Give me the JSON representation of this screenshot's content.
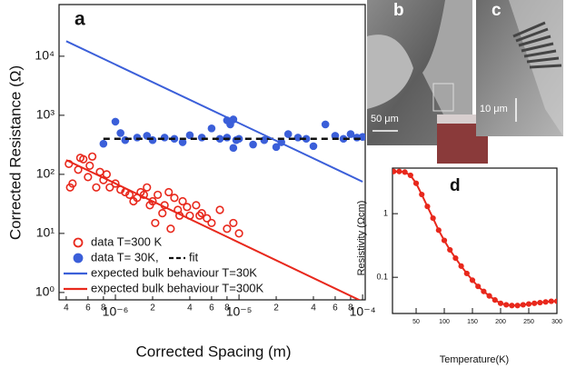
{
  "chart_data": [
    {
      "type": "scatter",
      "label": "a",
      "xlabel": "Corrected Spacing (m)",
      "ylabel": "Corrected Resistance (Ω)",
      "xscale": "log",
      "yscale": "log",
      "xlim": [
        3.5e-07,
        0.000105
      ],
      "ylim": [
        0.75,
        75000
      ],
      "xticks": [
        {
          "value": 4e-07,
          "label": "4"
        },
        {
          "value": 6e-07,
          "label": "6"
        },
        {
          "value": 8e-07,
          "label": "8"
        },
        {
          "value": 1e-06,
          "label": "10⁻⁶"
        },
        {
          "value": 2e-06,
          "label": "2"
        },
        {
          "value": 4e-06,
          "label": "4"
        },
        {
          "value": 6e-06,
          "label": "6"
        },
        {
          "value": 8e-06,
          "label": "8"
        },
        {
          "value": 1e-05,
          "label": "10⁻⁵"
        },
        {
          "value": 2e-05,
          "label": "2"
        },
        {
          "value": 4e-05,
          "label": "4"
        },
        {
          "value": 6e-05,
          "label": "6"
        },
        {
          "value": 8e-05,
          "label": "8"
        },
        {
          "value": 0.0001,
          "label": "10⁻⁴"
        }
      ],
      "yticks": [
        {
          "value": 1,
          "label": "10⁰"
        },
        {
          "value": 10,
          "label": "10¹"
        },
        {
          "value": 100,
          "label": "10²"
        },
        {
          "value": 1000,
          "label": "10³"
        },
        {
          "value": 10000,
          "label": "10⁴"
        }
      ],
      "series": [
        {
          "name": "data T=300 K",
          "color": "#e8281c",
          "style": "open-circle",
          "x": [
            4.2e-07,
            4.5e-07,
            5e-07,
            5.5e-07,
            6e-07,
            6.5e-07,
            7e-07,
            7.5e-07,
            8e-07,
            9e-07,
            1e-06,
            1.1e-06,
            1.2e-06,
            1.3e-06,
            1.5e-06,
            1.6e-06,
            1.8e-06,
            2e-06,
            2.2e-06,
            2.5e-06,
            2.7e-06,
            3e-06,
            3.2e-06,
            3.5e-06,
            4e-06,
            4.5e-06,
            5e-06,
            5.5e-06,
            6e-06,
            7e-06,
            8e-06,
            9e-06,
            1e-05,
            4.3e-07,
            5.2e-07,
            6.2e-07,
            8.5e-07,
            1.4e-06,
            1.7e-06,
            2.1e-06,
            2.8e-06,
            3.3e-06,
            3.8e-06,
            4.8e-06,
            1.9e-06,
            2.4e-06
          ],
          "values": [
            150,
            70,
            120,
            180,
            90,
            200,
            60,
            110,
            80,
            60,
            70,
            55,
            50,
            45,
            40,
            50,
            60,
            35,
            45,
            30,
            50,
            40,
            25,
            35,
            20,
            30,
            22,
            18,
            15,
            25,
            12,
            15,
            10,
            60,
            190,
            140,
            100,
            35,
            45,
            15,
            12,
            20,
            28,
            20,
            30,
            22
          ]
        },
        {
          "name": "data T= 30K,",
          "color": "#3b5fd9",
          "style": "filled-circle",
          "x": [
            8e-07,
            1e-06,
            1.2e-06,
            1.5e-06,
            1.8e-06,
            2e-06,
            2.5e-06,
            3e-06,
            3.5e-06,
            4e-06,
            5e-06,
            6e-06,
            7e-06,
            8e-06,
            8.5e-06,
            9e-06,
            9.5e-06,
            1e-05,
            1.3e-05,
            1.6e-05,
            2e-05,
            2.5e-05,
            3e-05,
            3.5e-05,
            4e-05,
            5e-05,
            6e-05,
            7e-05,
            8e-05,
            9e-05,
            0.0001,
            1.1e-06,
            8e-06,
            9e-06,
            2.2e-05
          ],
          "values": [
            330,
            780,
            380,
            420,
            450,
            380,
            420,
            400,
            350,
            460,
            420,
            600,
            400,
            820,
            700,
            850,
            380,
            400,
            320,
            380,
            290,
            480,
            420,
            400,
            300,
            700,
            450,
            400,
            480,
            420,
            430,
            500,
            420,
            280,
            350
          ]
        },
        {
          "name": "fit",
          "color": "#111111",
          "style": "dashed",
          "x": [
            8e-07,
            0.0001
          ],
          "values": [
            400,
            400
          ]
        },
        {
          "name": "expected bulk behaviour T=30K",
          "color": "#3b5fd9",
          "style": "line",
          "x": [
            4e-07,
            0.0001
          ],
          "values": [
            18000,
            75
          ]
        },
        {
          "name": "expected bulk behaviour T=300K",
          "color": "#e8281c",
          "style": "line",
          "x": [
            4e-07,
            0.0001
          ],
          "values": [
            175,
            0.7
          ]
        }
      ]
    },
    {
      "type": "line",
      "label": "d",
      "xlabel": "Temperature(K)",
      "ylabel": "Resistivity (Ωcm)",
      "xscale": "linear",
      "yscale": "log",
      "xlim": [
        8,
        300
      ],
      "ylim": [
        0.027,
        5.2
      ],
      "xticks": [
        50,
        100,
        150,
        200,
        250,
        300
      ],
      "yticks": [
        0.1,
        1
      ],
      "series": [
        {
          "name": null,
          "color": "#e8281c",
          "style": "line-markers",
          "x": [
            10,
            20,
            30,
            40,
            50,
            60,
            70,
            80,
            90,
            100,
            110,
            120,
            130,
            140,
            150,
            160,
            170,
            180,
            190,
            200,
            210,
            220,
            230,
            240,
            250,
            260,
            270,
            280,
            290,
            300
          ],
          "values": [
            4.6,
            4.6,
            4.5,
            4.0,
            3.0,
            2.0,
            1.3,
            0.85,
            0.55,
            0.38,
            0.27,
            0.2,
            0.15,
            0.115,
            0.09,
            0.072,
            0.06,
            0.051,
            0.044,
            0.039,
            0.037,
            0.036,
            0.036,
            0.037,
            0.038,
            0.039,
            0.04,
            0.041,
            0.042,
            0.042
          ]
        }
      ]
    }
  ],
  "panels": [
    {
      "label": "b",
      "scale": "50 μm"
    },
    {
      "label": "c",
      "scale": "10 μm"
    }
  ]
}
